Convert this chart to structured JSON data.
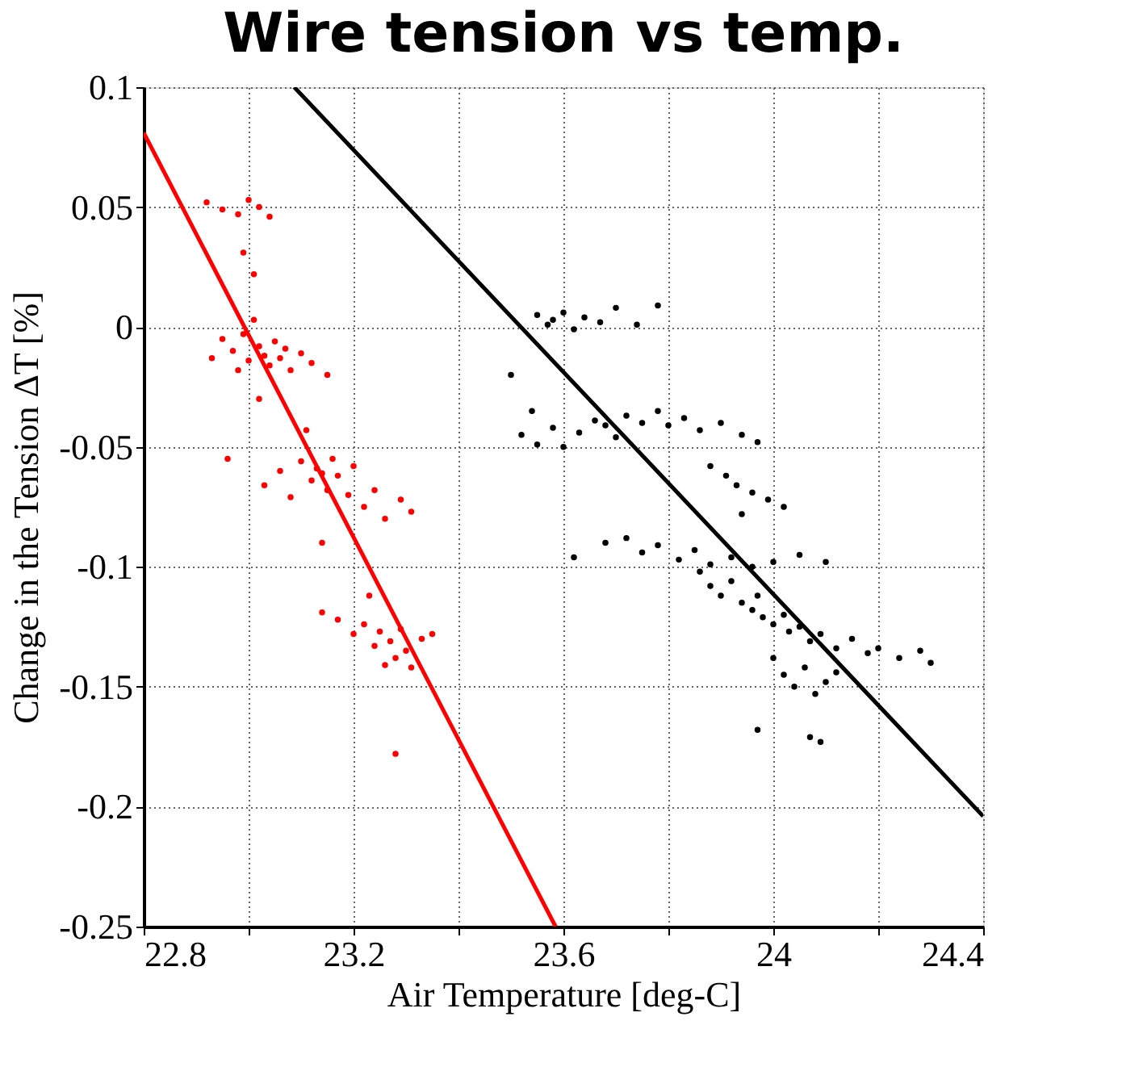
{
  "chart_data": {
    "type": "scatter",
    "title": "Wire tension vs temp.",
    "xlabel": "Air Temperature  [deg-C]",
    "ylabel": "Change in the Tension ΔT  [%]",
    "xlim": [
      22.8,
      24.4
    ],
    "ylim": [
      -0.25,
      0.1
    ],
    "xticks": [
      22.8,
      {
        "value": 23.0,
        "label": null
      },
      23.2,
      {
        "value": 23.4,
        "label": null
      },
      23.6,
      {
        "value": 23.8,
        "label": null
      },
      24,
      {
        "value": 24.2,
        "label": null
      },
      24.4
    ],
    "yticks": [
      -0.25,
      -0.2,
      -0.15,
      -0.1,
      -0.05,
      0,
      0.05,
      0.1
    ],
    "grid": true,
    "series": [
      {
        "color": "#ff0000",
        "x": [
          22.92,
          22.95,
          22.98,
          23.0,
          23.02,
          23.04,
          22.99,
          23.01,
          22.93,
          22.95,
          22.97,
          22.99,
          23.0,
          23.02,
          23.03,
          23.04,
          23.05,
          23.06,
          23.08,
          23.1,
          23.12,
          23.15,
          23.01,
          22.98,
          23.07,
          23.02,
          22.96,
          23.03,
          23.06,
          23.08,
          23.1,
          23.12,
          23.13,
          23.14,
          23.15,
          23.16,
          23.17,
          23.19,
          23.2,
          23.22,
          23.24,
          23.26,
          23.29,
          23.31,
          23.14,
          23.11,
          23.14,
          23.17,
          23.2,
          23.22,
          23.24,
          23.25,
          23.27,
          23.28,
          23.29,
          23.3,
          23.31,
          23.33,
          23.35,
          23.26,
          23.23,
          23.28
        ],
        "values": [
          0.052,
          0.049,
          0.047,
          0.053,
          0.05,
          0.046,
          0.031,
          0.022,
          -0.013,
          -0.005,
          -0.01,
          -0.003,
          -0.014,
          -0.008,
          -0.012,
          -0.016,
          -0.006,
          -0.013,
          -0.018,
          -0.011,
          -0.015,
          -0.02,
          0.003,
          -0.018,
          -0.009,
          -0.03,
          -0.055,
          -0.066,
          -0.06,
          -0.071,
          -0.056,
          -0.064,
          -0.059,
          -0.061,
          -0.068,
          -0.055,
          -0.062,
          -0.07,
          -0.058,
          -0.075,
          -0.068,
          -0.08,
          -0.072,
          -0.077,
          -0.09,
          -0.043,
          -0.119,
          -0.122,
          -0.128,
          -0.124,
          -0.133,
          -0.127,
          -0.131,
          -0.138,
          -0.126,
          -0.135,
          -0.142,
          -0.13,
          -0.128,
          -0.141,
          -0.112,
          -0.178
        ]
      },
      {
        "type": "line",
        "color": "#ff0000",
        "x": [
          22.8,
          23.585
        ],
        "values": [
          0.081,
          -0.25
        ]
      },
      {
        "color": "#000000",
        "x": [
          23.55,
          23.57,
          23.58,
          23.6,
          23.62,
          23.64,
          23.67,
          23.7,
          23.74,
          23.78,
          23.52,
          23.55,
          23.58,
          23.6,
          23.63,
          23.66,
          23.68,
          23.7,
          23.72,
          23.75,
          23.78,
          23.8,
          23.83,
          23.86,
          23.9,
          23.94,
          23.97,
          23.54,
          23.5,
          23.88,
          23.91,
          23.93,
          23.96,
          23.99,
          24.02,
          23.94,
          23.68,
          23.72,
          23.75,
          23.78,
          23.82,
          23.85,
          23.88,
          23.92,
          23.96,
          24.0,
          24.05,
          24.1,
          23.62,
          23.86,
          23.88,
          23.9,
          23.92,
          23.94,
          23.96,
          23.98,
          24.0,
          24.02,
          24.03,
          24.05,
          24.07,
          24.09,
          24.12,
          24.15,
          24.18,
          23.97,
          24.0,
          24.02,
          24.04,
          24.06,
          24.08,
          24.1,
          24.12,
          24.2,
          24.24,
          24.28,
          24.3,
          24.09,
          24.07,
          23.97
        ],
        "values": [
          0.005,
          0.001,
          0.003,
          0.006,
          -0.001,
          0.004,
          0.002,
          0.008,
          0.001,
          0.009,
          -0.045,
          -0.049,
          -0.042,
          -0.05,
          -0.044,
          -0.039,
          -0.041,
          -0.046,
          -0.037,
          -0.04,
          -0.035,
          -0.041,
          -0.038,
          -0.043,
          -0.04,
          -0.045,
          -0.048,
          -0.035,
          -0.02,
          -0.058,
          -0.062,
          -0.066,
          -0.069,
          -0.072,
          -0.075,
          -0.078,
          -0.09,
          -0.088,
          -0.094,
          -0.091,
          -0.097,
          -0.093,
          -0.099,
          -0.096,
          -0.1,
          -0.098,
          -0.095,
          -0.098,
          -0.096,
          -0.102,
          -0.108,
          -0.112,
          -0.106,
          -0.115,
          -0.118,
          -0.121,
          -0.124,
          -0.12,
          -0.127,
          -0.125,
          -0.131,
          -0.128,
          -0.134,
          -0.13,
          -0.136,
          -0.112,
          -0.138,
          -0.145,
          -0.15,
          -0.142,
          -0.153,
          -0.148,
          -0.144,
          -0.134,
          -0.138,
          -0.135,
          -0.14,
          -0.173,
          -0.171,
          -0.168
        ]
      },
      {
        "type": "line",
        "color": "#000000",
        "x": [
          23.087,
          24.4
        ],
        "values": [
          0.1,
          -0.204
        ]
      }
    ]
  }
}
